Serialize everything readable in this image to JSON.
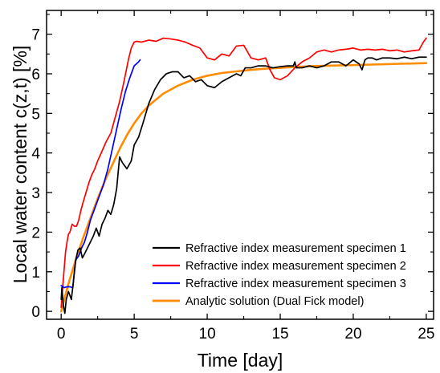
{
  "chart_data": {
    "type": "line",
    "xlabel": "Time [day]",
    "ylabel": "Local water content c(z,t) [%]",
    "xlim": [
      -1,
      25.5
    ],
    "ylim": [
      -0.2,
      7.6
    ],
    "x_ticks": [
      0,
      5,
      10,
      15,
      20,
      25
    ],
    "y_ticks": [
      0,
      1,
      2,
      3,
      4,
      5,
      6,
      7
    ],
    "x_tick_labels": [
      "0",
      "5",
      "10",
      "15",
      "20",
      "25"
    ],
    "y_tick_labels": [
      "0",
      "1",
      "2",
      "3",
      "4",
      "5",
      "6",
      "7"
    ],
    "grid": false,
    "legend_position": "bottom-right",
    "series": [
      {
        "name": "Refractive index measurement specimen 1",
        "color": "#000000",
        "x": [
          0,
          0.05,
          0.15,
          0.25,
          0.35,
          0.5,
          0.7,
          0.85,
          1.0,
          1.15,
          1.3,
          1.45,
          1.6,
          1.8,
          2.0,
          2.2,
          2.4,
          2.6,
          2.8,
          3.0,
          3.2,
          3.4,
          3.6,
          3.8,
          4.0,
          4.2,
          4.5,
          4.8,
          5.0,
          5.3,
          5.6,
          6.0,
          6.4,
          6.8,
          7.2,
          7.6,
          8.0,
          8.4,
          8.8,
          9.2,
          9.6,
          10.0,
          10.5,
          11.0,
          11.5,
          12.0,
          12.3,
          12.6,
          13.0,
          13.5,
          14.0,
          14.5,
          15.0,
          15.5,
          15.9,
          16.0,
          16.1,
          16.5,
          17.0,
          17.5,
          18.0,
          18.5,
          19.0,
          19.5,
          20.0,
          20.4,
          20.6,
          20.8,
          21.0,
          21.3,
          21.6,
          22.0,
          22.5,
          23.0,
          23.5,
          24.0,
          24.5,
          25.0
        ],
        "values": [
          0.3,
          0.6,
          0.15,
          -0.05,
          0.3,
          0.5,
          0.3,
          0.8,
          1.3,
          1.55,
          1.6,
          1.35,
          1.45,
          1.6,
          1.75,
          1.9,
          2.1,
          1.9,
          2.2,
          2.35,
          2.55,
          2.45,
          2.7,
          3.1,
          3.9,
          3.75,
          3.6,
          3.8,
          4.2,
          4.4,
          4.75,
          5.25,
          5.6,
          5.85,
          6.0,
          6.05,
          6.05,
          5.9,
          5.95,
          5.8,
          5.85,
          5.7,
          5.65,
          5.8,
          5.9,
          6.0,
          5.95,
          6.15,
          6.15,
          6.2,
          6.2,
          6.15,
          6.18,
          6.2,
          6.2,
          6.3,
          6.15,
          6.15,
          6.2,
          6.15,
          6.2,
          6.3,
          6.3,
          6.2,
          6.35,
          6.25,
          6.1,
          6.35,
          6.4,
          6.4,
          6.35,
          6.4,
          6.4,
          6.38,
          6.42,
          6.38,
          6.42,
          6.42
        ]
      },
      {
        "name": "Refractive index measurement specimen 2",
        "color": "#ff0000",
        "x": [
          0,
          0.1,
          0.2,
          0.3,
          0.4,
          0.5,
          0.6,
          0.75,
          0.9,
          1.05,
          1.2,
          1.35,
          1.5,
          1.7,
          1.9,
          2.1,
          2.3,
          2.5,
          2.8,
          3.1,
          3.4,
          3.7,
          4.0,
          4.3,
          4.6,
          4.8,
          5.0,
          5.2,
          5.5,
          6.0,
          6.5,
          7.0,
          7.5,
          8.0,
          8.5,
          9.0,
          9.5,
          10.0,
          10.5,
          11.0,
          11.5,
          12.0,
          12.5,
          13.0,
          13.5,
          14.0,
          14.3,
          14.6,
          15.0,
          15.5,
          16.0,
          16.5,
          17.0,
          17.5,
          18.0,
          18.5,
          19.0,
          19.5,
          20.0,
          20.5,
          21.0,
          21.5,
          22.0,
          22.5,
          23.0,
          23.5,
          24.0,
          24.5,
          24.8,
          25.0
        ],
        "values": [
          0.1,
          0.6,
          1.05,
          1.5,
          1.75,
          1.95,
          2.0,
          2.2,
          2.15,
          2.15,
          2.3,
          2.55,
          2.75,
          3.0,
          3.25,
          3.45,
          3.6,
          3.8,
          4.05,
          4.3,
          4.5,
          4.9,
          5.3,
          5.8,
          6.35,
          6.65,
          6.8,
          6.82,
          6.8,
          6.85,
          6.82,
          6.9,
          6.88,
          6.85,
          6.8,
          6.72,
          6.65,
          6.4,
          6.35,
          6.5,
          6.45,
          6.7,
          6.72,
          6.4,
          6.35,
          6.4,
          6.1,
          5.9,
          5.85,
          5.95,
          6.15,
          6.3,
          6.4,
          6.55,
          6.6,
          6.55,
          6.6,
          6.62,
          6.65,
          6.6,
          6.62,
          6.6,
          6.62,
          6.58,
          6.6,
          6.55,
          6.58,
          6.6,
          6.8,
          6.9
        ]
      },
      {
        "name": "Refractive index measurement specimen 3",
        "color": "#0000ff",
        "x": [
          0,
          0.2,
          0.4,
          0.6,
          0.8,
          0.9,
          1.0,
          1.2,
          1.4,
          1.6,
          1.8,
          2.0,
          2.3,
          2.6,
          2.9,
          3.2,
          3.5,
          3.8,
          4.1,
          4.4,
          4.7,
          5.0,
          5.3,
          5.4
        ],
        "values": [
          0.65,
          0.6,
          0.62,
          0.62,
          0.6,
          1.0,
          1.3,
          1.4,
          1.6,
          1.75,
          2.0,
          2.3,
          2.6,
          2.9,
          3.2,
          3.6,
          4.1,
          4.6,
          5.1,
          5.55,
          5.9,
          6.2,
          6.3,
          6.35
        ]
      },
      {
        "name": "Analytic solution (Dual Fick model)",
        "color": "#ff8c00",
        "x": [
          0,
          0.25,
          0.5,
          0.75,
          1.0,
          1.5,
          2.0,
          2.5,
          3.0,
          3.5,
          4.0,
          4.5,
          5.0,
          5.5,
          6.0,
          7.0,
          8.0,
          9.0,
          10.0,
          11.0,
          12.0,
          13.0,
          14.0,
          15.0,
          16.0,
          17.0,
          18.0,
          19.0,
          20.0,
          21.0,
          22.0,
          23.0,
          24.0,
          25.0
        ],
        "values": [
          0.0,
          0.35,
          0.7,
          1.0,
          1.3,
          1.85,
          2.35,
          2.85,
          3.3,
          3.7,
          4.1,
          4.45,
          4.75,
          5.0,
          5.2,
          5.5,
          5.7,
          5.85,
          5.95,
          6.02,
          6.06,
          6.1,
          6.13,
          6.15,
          6.17,
          6.19,
          6.2,
          6.21,
          6.22,
          6.23,
          6.24,
          6.25,
          6.26,
          6.27
        ]
      }
    ]
  }
}
